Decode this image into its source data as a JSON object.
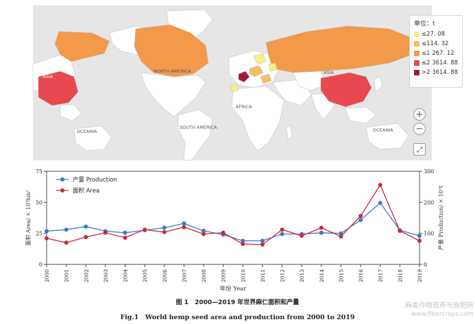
{
  "map": {
    "labels": {
      "asia_left": "ASIA",
      "north_america": "NORTH AMERICA",
      "africa": "AFRICA",
      "asia_right": "ASIA",
      "south_america": "SOUTH AMERICA",
      "oceania_left": "OCEANIA",
      "oceania_right": "OCEANIA"
    },
    "legend": {
      "title": "单位：t",
      "items": [
        {
          "label": "≤27. 08",
          "color": "#f4f08a"
        },
        {
          "label": "≤114. 32",
          "color": "#f5bd64"
        },
        {
          "label": "≤1 267. 12",
          "color": "#f29a4a"
        },
        {
          "label": "≤2 3614. 88",
          "color": "#e8484f"
        },
        {
          "label": ">2 3614. 88",
          "color": "#a5163e"
        }
      ]
    },
    "controls": {
      "zoom_in": "+",
      "zoom_out": "−",
      "fullscreen": "⤢"
    },
    "region_colors": {
      "china": "#e8484f",
      "russia": "#f29a4a",
      "canada": "#f29a4a",
      "europe_high": "#a5163e",
      "europe_mid": "#f5bd64",
      "europe_low": "#f4f08a",
      "land": "#ffffff",
      "water": "#e6e6e6"
    }
  },
  "chart_data": {
    "type": "line",
    "x": [
      2000,
      2001,
      2002,
      2003,
      2004,
      2005,
      2006,
      2007,
      2008,
      2009,
      2010,
      2011,
      2012,
      2013,
      2014,
      2015,
      2016,
      2017,
      2018,
      2019
    ],
    "xlabel": "年份 Year",
    "ylabel_left": "面积 Area/ × 10³hm²",
    "ylabel_right": "产量 Production/ × 10³t",
    "ylim_left": [
      0,
      75
    ],
    "ylim_right": [
      0,
      300
    ],
    "yticks_left": [
      0,
      25,
      50,
      75
    ],
    "yticks_right": [
      0,
      100,
      200,
      300
    ],
    "series": [
      {
        "name": "产量 Production",
        "axis": "right",
        "color": "#3a78c8",
        "values": [
          107,
          112,
          122,
          107,
          102,
          110,
          118,
          132,
          108,
          96,
          76,
          76,
          98,
          98,
          102,
          100,
          143,
          198,
          110,
          92
        ]
      },
      {
        "name": "面积 Area",
        "axis": "left",
        "color": "#c9283a",
        "values": [
          21,
          17.5,
          22,
          25.5,
          21.5,
          28,
          26,
          30,
          24.5,
          25.5,
          16.5,
          16,
          28,
          23,
          29.5,
          22.5,
          39,
          64,
          27,
          19
        ]
      }
    ],
    "legend_position": "top-left"
  },
  "caption": {
    "chinese": "图 1　2000—2019 年世界麻仁面积和产量",
    "english": "Fig.1　World hemp seed area and production from 2000 to 2019"
  },
  "watermark": {
    "line1": "麻类作物营养与施肥网",
    "line2": "www.fibercrops.com"
  }
}
